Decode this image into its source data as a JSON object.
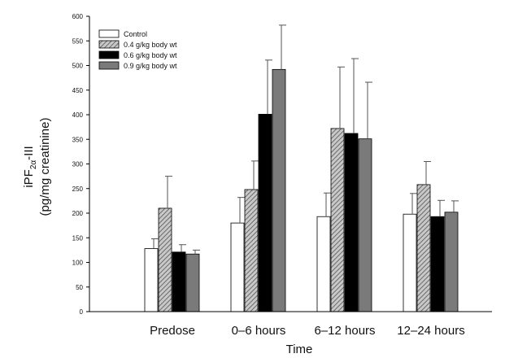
{
  "chart_data": {
    "type": "bar",
    "categories": [
      "Predose",
      "0–6 hours",
      "6–12 hours",
      "12–24 hours"
    ],
    "series": [
      {
        "name": "Control",
        "color": "#ffffff",
        "pattern": "none",
        "values": [
          128,
          180,
          193,
          198
        ],
        "errors": [
          20,
          52,
          48,
          42
        ]
      },
      {
        "name": "0.4 g/kg body wt",
        "color": "#9a9a9a",
        "pattern": "hatch",
        "values": [
          210,
          248,
          372,
          258
        ],
        "errors": [
          65,
          58,
          125,
          47
        ]
      },
      {
        "name": "0.6 g/kg body wt",
        "color": "#000000",
        "pattern": "none",
        "values": [
          121,
          401,
          362,
          193
        ],
        "errors": [
          15,
          110,
          152,
          33
        ]
      },
      {
        "name": "0.9 g/kg body wt",
        "color": "#7a7a7a",
        "pattern": "none",
        "values": [
          117,
          492,
          351,
          202
        ],
        "errors": [
          8,
          90,
          115,
          23
        ]
      }
    ],
    "xlabel": "Time",
    "ylabel_line1": "iPF",
    "ylabel_sub": "2α",
    "ylabel_line1_suffix": "-III",
    "ylabel_line2": "(pg/mg creatinine)",
    "ylim": [
      0,
      600
    ],
    "yticks": [
      0,
      50,
      100,
      150,
      200,
      250,
      300,
      350,
      400,
      450,
      500,
      550,
      600
    ],
    "grid": false,
    "legend_position": "top-left"
  }
}
